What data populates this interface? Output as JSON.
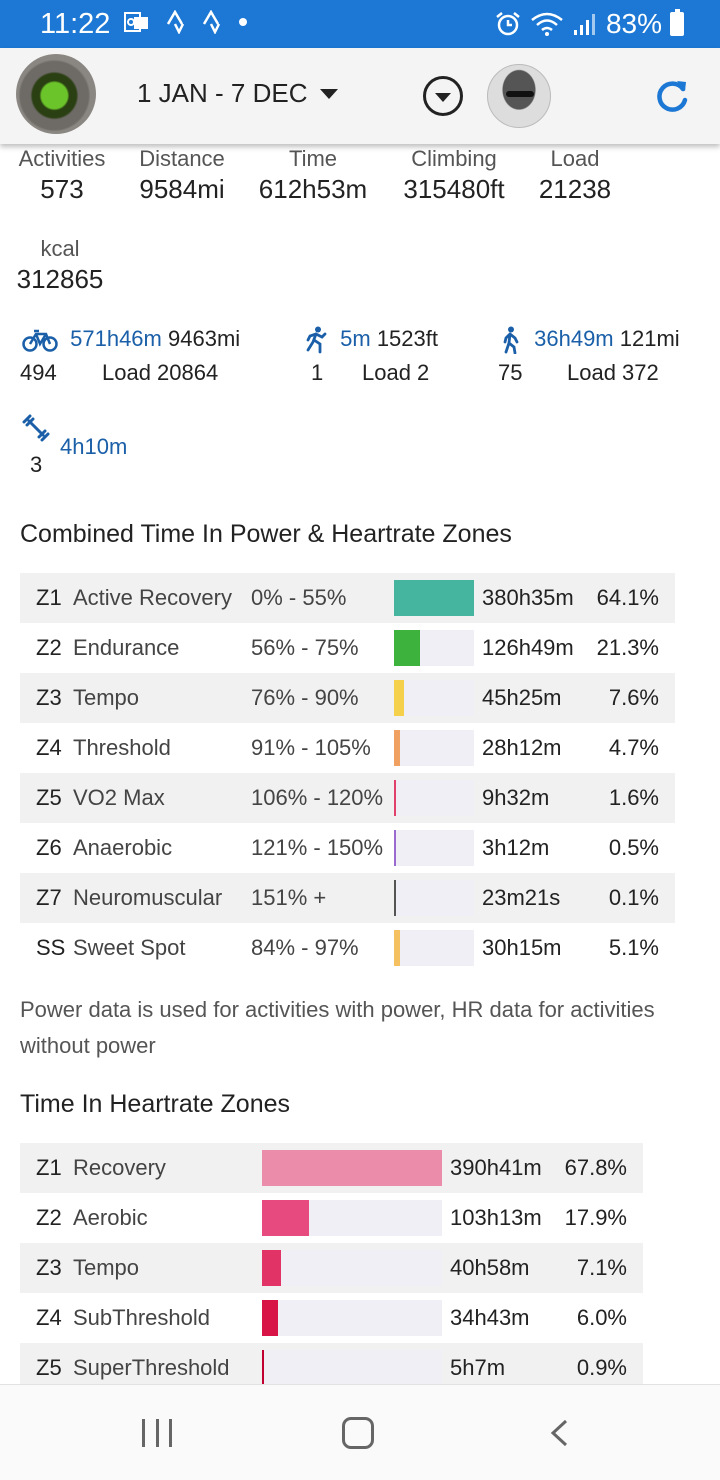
{
  "status": {
    "time": "11:22",
    "battery": "83%"
  },
  "header": {
    "date_range": "1 JAN - 7 DEC"
  },
  "summary": {
    "activities": {
      "label": "Activities",
      "value": "573"
    },
    "distance": {
      "label": "Distance",
      "value": "9584mi"
    },
    "time": {
      "label": "Time",
      "value": "612h53m"
    },
    "climbing": {
      "label": "Climbing",
      "value": "315480ft"
    },
    "load": {
      "label": "Load",
      "value": "21238"
    },
    "kcal": {
      "label": "kcal",
      "value": "312865"
    }
  },
  "sports": {
    "ride": {
      "time": "571h46m",
      "distance": "9463mi",
      "count": "494",
      "load": "Load 20864"
    },
    "run": {
      "time": "5m",
      "distance": "1523ft",
      "count": "1",
      "load": "Load 2"
    },
    "walk": {
      "time": "36h49m",
      "distance": "121mi",
      "count": "75",
      "load": "Load 372"
    },
    "weights": {
      "time": "4h10m",
      "count": "3"
    }
  },
  "combined_zones": {
    "title": "Combined Time In Power & Heartrate Zones",
    "rows": [
      {
        "code": "Z1",
        "name": "Active Recovery",
        "range": "0% - 55%",
        "time": "380h35m",
        "pct": "64.1%",
        "fraction": 1.0,
        "color": "#45b5a0"
      },
      {
        "code": "Z2",
        "name": "Endurance",
        "range": "56% - 75%",
        "time": "126h49m",
        "pct": "21.3%",
        "fraction": 0.33,
        "color": "#3db33d"
      },
      {
        "code": "Z3",
        "name": "Tempo",
        "range": "76% - 90%",
        "time": "45h25m",
        "pct": "7.6%",
        "fraction": 0.12,
        "color": "#f5d04a"
      },
      {
        "code": "Z4",
        "name": "Threshold",
        "range": "91% - 105%",
        "time": "28h12m",
        "pct": "4.7%",
        "fraction": 0.075,
        "color": "#f0a060"
      },
      {
        "code": "Z5",
        "name": "VO2 Max",
        "range": "106% - 120%",
        "time": "9h32m",
        "pct": "1.6%",
        "fraction": 0.025,
        "color": "#e0406a"
      },
      {
        "code": "Z6",
        "name": "Anaerobic",
        "range": "121% - 150%",
        "time": "3h12m",
        "pct": "0.5%",
        "fraction": 0.012,
        "color": "#9a6ad0"
      },
      {
        "code": "Z7",
        "name": "Neuromuscular",
        "range": "151% +",
        "time": "23m21s",
        "pct": "0.1%",
        "fraction": 0.01,
        "color": "#555555"
      },
      {
        "code": "SS",
        "name": "Sweet Spot",
        "range": "84% - 97%",
        "time": "30h15m",
        "pct": "5.1%",
        "fraction": 0.08,
        "color": "#f5c060"
      }
    ]
  },
  "note": "Power data is used for activities with power, HR data for activities without power",
  "hr_zones": {
    "title": "Time In Heartrate Zones",
    "rows": [
      {
        "code": "Z1",
        "name": "Recovery",
        "time": "390h41m",
        "pct": "67.8%",
        "fraction": 1.0,
        "color": "#ec8cab"
      },
      {
        "code": "Z2",
        "name": "Aerobic",
        "time": "103h13m",
        "pct": "17.9%",
        "fraction": 0.26,
        "color": "#e64a7e"
      },
      {
        "code": "Z3",
        "name": "Tempo",
        "time": "40h58m",
        "pct": "7.1%",
        "fraction": 0.105,
        "color": "#e23366"
      },
      {
        "code": "Z4",
        "name": "SubThreshold",
        "time": "34h43m",
        "pct": "6.0%",
        "fraction": 0.088,
        "color": "#d81447"
      },
      {
        "code": "Z5",
        "name": "SuperThreshold",
        "time": "5h7m",
        "pct": "0.9%",
        "fraction": 0.012,
        "color": "#c00030"
      }
    ]
  }
}
